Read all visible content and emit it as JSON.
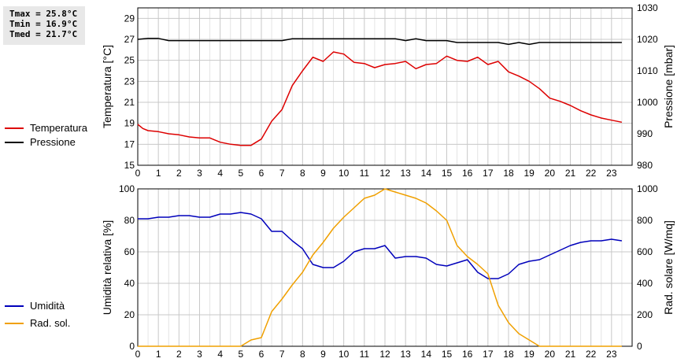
{
  "stats": {
    "tmax": "Tmax = 25.8°C",
    "tmin": "Tmin = 16.9°C",
    "tmed": "Tmed = 21.7°C"
  },
  "colors": {
    "temperatura": "#dd0000",
    "pressione": "#000000",
    "umidita": "#0000bb",
    "radsol": "#f0a000",
    "grid": "#c8c8c8"
  },
  "chart_data": [
    {
      "type": "line",
      "x_ticks": [
        "0",
        "1",
        "2",
        "3",
        "4",
        "5",
        "6",
        "7",
        "8",
        "9",
        "10",
        "11",
        "12",
        "13",
        "14",
        "15",
        "16",
        "17",
        "18",
        "19",
        "20",
        "21",
        "22",
        "23"
      ],
      "xlim": [
        0,
        24
      ],
      "ylabel": "Temperatura [°C]",
      "ylabel2": "Pressione [mbar]",
      "ylim": [
        15,
        30
      ],
      "ylim2": [
        980,
        1030
      ],
      "y_ticks": [
        "15",
        "17",
        "19",
        "21",
        "23",
        "25",
        "27",
        "29"
      ],
      "y2_ticks": [
        "980",
        "990",
        "1000",
        "1010",
        "1020",
        "1030"
      ],
      "grid": true,
      "series": [
        {
          "name": "Temperatura",
          "axis": "left",
          "x": [
            0,
            0.25,
            0.5,
            1,
            1.5,
            2,
            2.5,
            3,
            3.5,
            4,
            4.5,
            5,
            5.5,
            6,
            6.5,
            7,
            7.5,
            8,
            8.5,
            9,
            9.5,
            10,
            10.5,
            11,
            11.5,
            12,
            12.5,
            13,
            13.5,
            14,
            14.5,
            15,
            15.5,
            16,
            16.5,
            17,
            17.5,
            18,
            18.5,
            19,
            19.5,
            20,
            20.5,
            21,
            21.5,
            22,
            22.5,
            23,
            23.5
          ],
          "values": [
            18.9,
            18.5,
            18.3,
            18.2,
            18.0,
            17.9,
            17.7,
            17.6,
            17.6,
            17.2,
            17.0,
            16.9,
            16.9,
            17.5,
            19.2,
            20.3,
            22.6,
            24.0,
            25.3,
            24.9,
            25.8,
            25.6,
            24.8,
            24.7,
            24.3,
            24.6,
            24.7,
            24.9,
            24.2,
            24.6,
            24.7,
            25.4,
            25.0,
            24.9,
            25.3,
            24.6,
            24.9,
            23.9,
            23.5,
            23.0,
            22.3,
            21.4,
            21.1,
            20.7,
            20.2,
            19.8,
            19.5,
            19.3,
            19.1
          ]
        },
        {
          "name": "Pressione",
          "axis": "right",
          "x": [
            0,
            0.5,
            1,
            1.5,
            2,
            3,
            4,
            5,
            6,
            7,
            7.5,
            8,
            9,
            10,
            11,
            12,
            12.5,
            13,
            13.5,
            14,
            15,
            15.5,
            16,
            17,
            17.5,
            18,
            18.5,
            19,
            19.5,
            20,
            21,
            22,
            23,
            23.5
          ],
          "values": [
            1020,
            1020.3,
            1020.3,
            1019.6,
            1019.6,
            1019.6,
            1019.6,
            1019.6,
            1019.6,
            1019.6,
            1020.2,
            1020.2,
            1020.2,
            1020.2,
            1020.2,
            1020.2,
            1020.2,
            1019.6,
            1020.2,
            1019.6,
            1019.6,
            1019,
            1019,
            1019,
            1019,
            1018.4,
            1019,
            1018.4,
            1019,
            1019,
            1019,
            1019,
            1019,
            1019
          ]
        }
      ]
    },
    {
      "type": "line",
      "x_ticks": [
        "0",
        "1",
        "2",
        "3",
        "4",
        "5",
        "6",
        "7",
        "8",
        "9",
        "10",
        "11",
        "12",
        "13",
        "14",
        "15",
        "16",
        "17",
        "18",
        "19",
        "20",
        "21",
        "22",
        "23"
      ],
      "xlim": [
        0,
        24
      ],
      "ylabel": "Umidità relativa [%]",
      "ylabel2": "Rad. solare [W/mq]",
      "ylim": [
        0,
        100
      ],
      "ylim2": [
        0,
        1000
      ],
      "y_ticks": [
        "0",
        "20",
        "40",
        "60",
        "80",
        "100"
      ],
      "y2_ticks": [
        "0",
        "200",
        "400",
        "600",
        "800",
        "1000"
      ],
      "grid": true,
      "series": [
        {
          "name": "Umidità",
          "axis": "left",
          "x": [
            0,
            0.5,
            1,
            1.5,
            2,
            2.5,
            3,
            3.5,
            4,
            4.5,
            5,
            5.5,
            6,
            6.5,
            7,
            7.5,
            8,
            8.5,
            9,
            9.5,
            10,
            10.5,
            11,
            11.5,
            12,
            12.5,
            13,
            13.5,
            14,
            14.5,
            15,
            15.5,
            16,
            16.5,
            17,
            17.5,
            18,
            18.5,
            19,
            19.5,
            20,
            20.5,
            21,
            21.5,
            22,
            22.5,
            23,
            23.5
          ],
          "values": [
            81,
            81,
            82,
            82,
            83,
            83,
            82,
            82,
            84,
            84,
            85,
            84,
            81,
            73,
            73,
            67,
            62,
            52,
            50,
            50,
            54,
            60,
            62,
            62,
            64,
            56,
            57,
            57,
            56,
            52,
            51,
            53,
            55,
            47,
            43,
            43,
            46,
            52,
            54,
            55,
            58,
            61,
            64,
            66,
            67,
            67,
            68,
            67
          ]
        },
        {
          "name": "Rad. sol.",
          "axis": "right",
          "x": [
            0,
            1,
            2,
            3,
            4,
            5,
            5.5,
            6,
            6.5,
            7,
            7.5,
            8,
            8.5,
            9,
            9.5,
            10,
            10.5,
            11,
            11.5,
            12,
            12.5,
            13,
            13.5,
            14,
            14.5,
            15,
            15.5,
            16,
            16.5,
            17,
            17.5,
            18,
            18.5,
            19,
            19.5,
            20,
            21,
            22,
            23,
            23.5
          ],
          "values": [
            0,
            0,
            0,
            0,
            0,
            0,
            40,
            55,
            220,
            300,
            390,
            470,
            580,
            660,
            750,
            820,
            880,
            940,
            960,
            1000,
            980,
            960,
            940,
            910,
            860,
            800,
            640,
            570,
            520,
            460,
            260,
            150,
            80,
            40,
            0,
            0,
            0,
            0,
            0,
            0
          ]
        }
      ]
    }
  ],
  "legend": {
    "top": [
      {
        "label": "Temperatura",
        "color": "#dd0000"
      },
      {
        "label": "Pressione",
        "color": "#000000"
      }
    ],
    "bottom": [
      {
        "label": "Umidità",
        "color": "#0000bb"
      },
      {
        "label": "Rad. sol.",
        "color": "#f0a000"
      }
    ]
  }
}
